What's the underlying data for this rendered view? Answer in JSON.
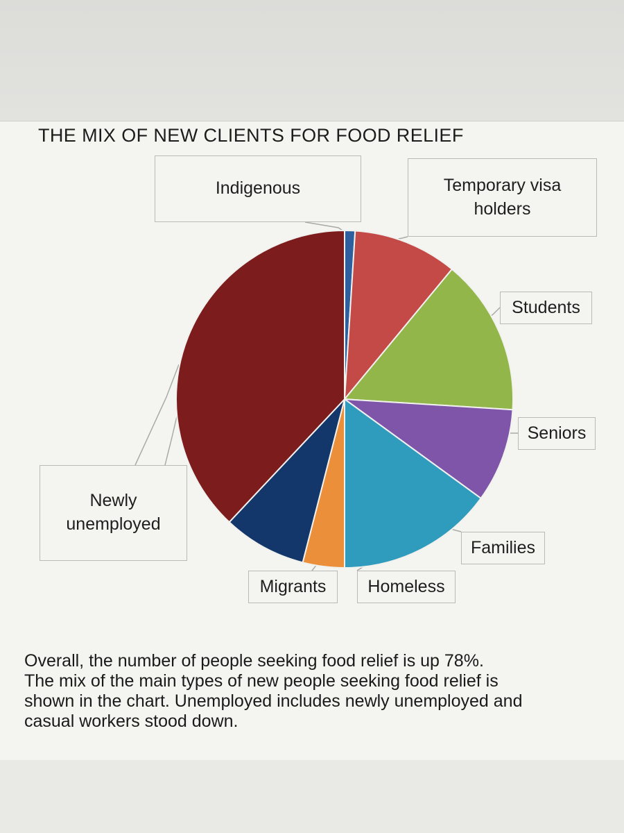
{
  "chart_data": {
    "type": "pie",
    "title": "THE MIX OF NEW CLIENTS FOR FOOD RELIEF",
    "start_angle_deg": 0,
    "direction": "clockwise",
    "slices": [
      {
        "label": "Indigenous",
        "value": 1,
        "color": "#2e5f9e"
      },
      {
        "label": "Temporary visa\nholders",
        "value": 10,
        "color": "#c44a48"
      },
      {
        "label": "Students",
        "value": 15,
        "color": "#92b64a"
      },
      {
        "label": "Seniors",
        "value": 9,
        "color": "#7e55a8"
      },
      {
        "label": "Families",
        "value": 15,
        "color": "#2f9bbd"
      },
      {
        "label": "Homeless",
        "value": 4,
        "color": "#ec8f3a"
      },
      {
        "label": "Migrants",
        "value": 8,
        "color": "#13376b"
      },
      {
        "label": "Newly\nunemployed",
        "value": 38,
        "color": "#7d1c1c"
      }
    ],
    "colors": {
      "slice_separator": "#f1f1ee",
      "leader_line": "#a9a9a6"
    }
  },
  "caption": [
    "Overall, the number of people seeking food relief is up 78%.",
    "The mix of the main types of new people seeking food relief is",
    "shown in the chart. Unemployed includes newly unemployed and",
    "casual workers stood down."
  ]
}
